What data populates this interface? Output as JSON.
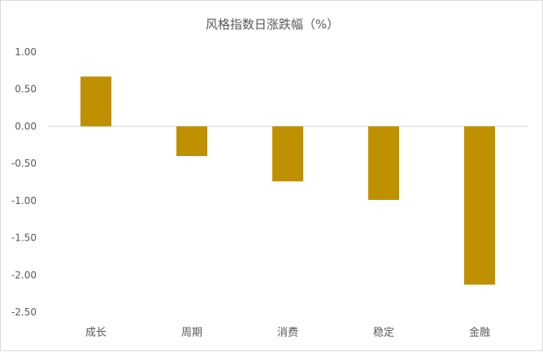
{
  "chart_data": {
    "type": "bar",
    "title": "风格指数日涨跌幅（%）",
    "xlabel": "",
    "ylabel": "",
    "categories": [
      "成长",
      "周期",
      "消费",
      "稳定",
      "金融"
    ],
    "series": [
      {
        "values": [
          0.67,
          -0.4,
          -0.74,
          -0.99,
          -2.13
        ],
        "color": "#bf9000"
      }
    ],
    "ylim": [
      -2.5,
      1.0
    ],
    "yticks": [
      "1.00",
      "0.50",
      "0.00",
      "-0.50",
      "-1.00",
      "-1.50",
      "-2.00",
      "-2.50"
    ],
    "grid": false,
    "legend": "none"
  }
}
